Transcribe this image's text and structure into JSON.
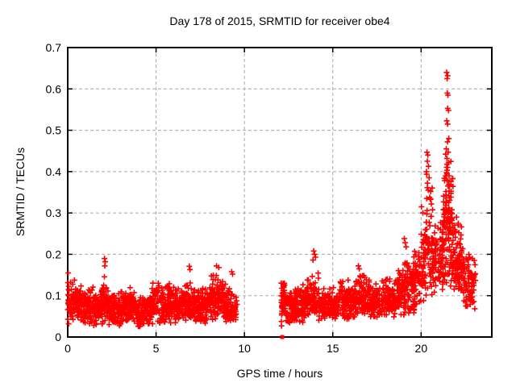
{
  "chart_data": {
    "type": "scatter",
    "title": "Day 178 of 2015, SRMTID for receiver obe4",
    "xlabel": "GPS time / hours",
    "ylabel": "SRMTID / TECUs",
    "xlim": [
      0,
      24
    ],
    "ylim": [
      0,
      0.7
    ],
    "xticks": [
      0,
      5,
      10,
      15,
      20
    ],
    "xtick_labels": [
      "0",
      "5",
      "10",
      "15",
      "20"
    ],
    "yticks": [
      0,
      0.1,
      0.2,
      0.3,
      0.4,
      0.5,
      0.6,
      0.7
    ],
    "ytick_labels": [
      "0",
      "0.1",
      "0.2",
      "0.3",
      "0.4",
      "0.5",
      "0.6",
      "0.7"
    ],
    "grid": true,
    "grid_style": "dashed",
    "grid_color": "#a8a8a8",
    "axis_color": "#000000",
    "background_color": "#ffffff",
    "legend": "none",
    "marker": {
      "shape": "plus",
      "color": "#ff0000",
      "size": 7
    },
    "series": [
      {
        "name": "SRMTID",
        "color": "#ff0000",
        "seed": 178,
        "data_gap": [
          9.6,
          12.08
        ],
        "zero_point": [
          12.14,
          0.0
        ],
        "bands_format": "[x_start, x_end, n_points, y_min_start, y_max_start, y_min_end, y_max_end]",
        "bands": [
          [
            0.0,
            0.5,
            70,
            0.03,
            0.16,
            0.03,
            0.14
          ],
          [
            0.5,
            1.0,
            70,
            0.03,
            0.14,
            0.03,
            0.12
          ],
          [
            1.0,
            2.0,
            140,
            0.03,
            0.12,
            0.025,
            0.13
          ],
          [
            2.0,
            2.3,
            40,
            0.03,
            0.165,
            0.03,
            0.13
          ],
          [
            2.3,
            3.4,
            150,
            0.025,
            0.12,
            0.025,
            0.11
          ],
          [
            3.4,
            3.9,
            70,
            0.03,
            0.14,
            0.03,
            0.12
          ],
          [
            3.9,
            4.7,
            100,
            0.02,
            0.1,
            0.025,
            0.105
          ],
          [
            4.7,
            5.8,
            150,
            0.03,
            0.13,
            0.03,
            0.135
          ],
          [
            5.8,
            7.0,
            160,
            0.03,
            0.12,
            0.035,
            0.15
          ],
          [
            7.0,
            8.0,
            130,
            0.03,
            0.12,
            0.03,
            0.125
          ],
          [
            8.0,
            8.8,
            110,
            0.035,
            0.16,
            0.035,
            0.15
          ],
          [
            8.8,
            9.6,
            100,
            0.03,
            0.15,
            0.03,
            0.1
          ],
          [
            12.08,
            12.35,
            50,
            0.03,
            0.17,
            0.035,
            0.14
          ],
          [
            12.35,
            13.3,
            120,
            0.03,
            0.12,
            0.035,
            0.12
          ],
          [
            13.3,
            14.2,
            110,
            0.035,
            0.13,
            0.04,
            0.18
          ],
          [
            14.2,
            15.3,
            130,
            0.035,
            0.12,
            0.04,
            0.13
          ],
          [
            15.3,
            16.3,
            120,
            0.04,
            0.15,
            0.04,
            0.14
          ],
          [
            16.3,
            17.3,
            120,
            0.04,
            0.16,
            0.04,
            0.14
          ],
          [
            17.3,
            18.6,
            150,
            0.04,
            0.14,
            0.045,
            0.15
          ],
          [
            18.6,
            19.3,
            100,
            0.05,
            0.18,
            0.05,
            0.22
          ],
          [
            19.3,
            20.0,
            90,
            0.05,
            0.2,
            0.06,
            0.24
          ],
          [
            20.0,
            20.3,
            45,
            0.07,
            0.28,
            0.08,
            0.33
          ],
          [
            20.3,
            20.65,
            55,
            0.09,
            0.42,
            0.1,
            0.38
          ],
          [
            20.65,
            21.25,
            85,
            0.09,
            0.28,
            0.11,
            0.31
          ],
          [
            21.25,
            21.8,
            120,
            0.11,
            0.5,
            0.12,
            0.45
          ],
          [
            21.8,
            22.35,
            90,
            0.1,
            0.3,
            0.09,
            0.27
          ],
          [
            22.35,
            23.1,
            85,
            0.07,
            0.24,
            0.06,
            0.2
          ]
        ],
        "notable_points": [
          [
            2.08,
            0.19
          ],
          [
            2.12,
            0.182
          ],
          [
            2.1,
            0.172
          ],
          [
            6.88,
            0.171
          ],
          [
            6.92,
            0.163
          ],
          [
            8.42,
            0.172
          ],
          [
            8.55,
            0.168
          ],
          [
            9.28,
            0.158
          ],
          [
            9.33,
            0.152
          ],
          [
            12.1,
            0.027
          ],
          [
            13.92,
            0.208
          ],
          [
            13.97,
            0.2
          ],
          [
            14.02,
            0.193
          ],
          [
            13.88,
            0.186
          ],
          [
            16.45,
            0.172
          ],
          [
            16.5,
            0.165
          ],
          [
            19.05,
            0.238
          ],
          [
            19.1,
            0.228
          ],
          [
            19.15,
            0.218
          ],
          [
            20.02,
            0.315
          ],
          [
            20.1,
            0.3
          ],
          [
            20.33,
            0.447
          ],
          [
            20.38,
            0.44
          ],
          [
            20.35,
            0.425
          ],
          [
            20.42,
            0.413
          ],
          [
            20.3,
            0.4
          ],
          [
            20.45,
            0.385
          ],
          [
            20.36,
            0.372
          ],
          [
            20.4,
            0.355
          ],
          [
            20.32,
            0.335
          ],
          [
            21.44,
            0.64
          ],
          [
            21.5,
            0.632
          ],
          [
            21.47,
            0.625
          ],
          [
            21.48,
            0.59
          ],
          [
            21.52,
            0.585
          ],
          [
            21.5,
            0.553
          ],
          [
            21.55,
            0.548
          ],
          [
            21.45,
            0.523
          ],
          [
            21.5,
            0.515
          ],
          [
            21.57,
            0.48
          ],
          [
            21.49,
            0.472
          ],
          [
            21.42,
            0.455
          ],
          [
            21.53,
            0.447
          ],
          [
            21.46,
            0.432
          ],
          [
            21.55,
            0.422
          ],
          [
            21.5,
            0.41
          ],
          [
            21.44,
            0.398
          ],
          [
            21.58,
            0.39
          ],
          [
            21.48,
            0.378
          ],
          [
            21.52,
            0.365
          ],
          [
            21.4,
            0.352
          ],
          [
            22.0,
            0.29
          ],
          [
            22.1,
            0.275
          ],
          [
            22.9,
            0.19
          ],
          [
            23.0,
            0.185
          ],
          [
            23.05,
            0.175
          ]
        ]
      }
    ]
  }
}
